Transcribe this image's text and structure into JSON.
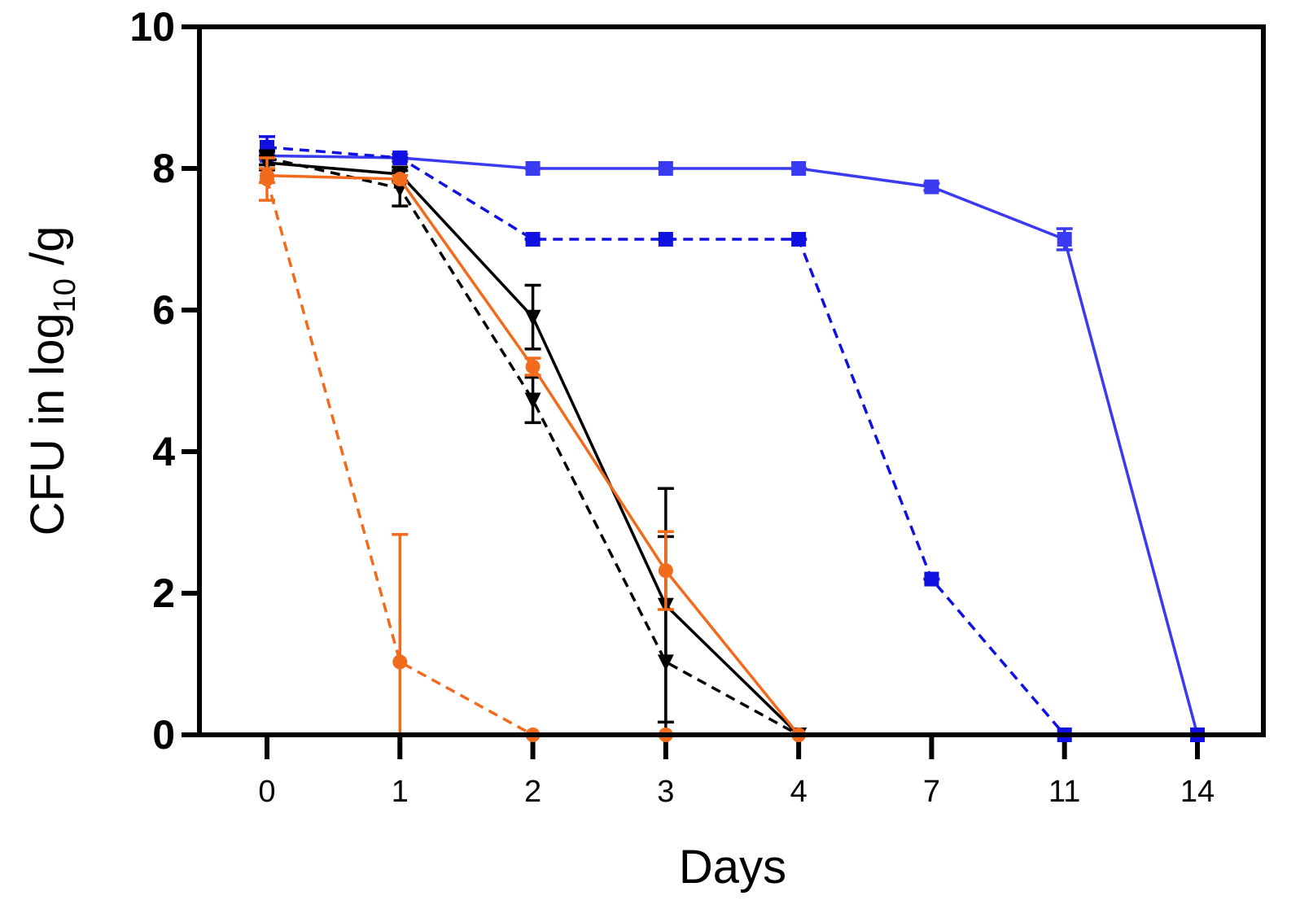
{
  "chart_data": {
    "type": "line",
    "xlabel": "Days",
    "ylabel": [
      "CFU in log",
      "10",
      " /g"
    ],
    "categories": [
      "0",
      "1",
      "2",
      "3",
      "4",
      "7",
      "11",
      "14"
    ],
    "ylim": [
      0,
      10
    ],
    "yticks": [
      0,
      2,
      4,
      6,
      8,
      10
    ],
    "series": [
      {
        "color": "#3a3af0",
        "marker": "square",
        "dashed": false,
        "values": [
          8.18,
          8.15,
          8.0,
          8.0,
          8.0,
          7.74,
          7.0,
          0
        ],
        "errors": [
          0.05,
          0.05,
          0,
          0,
          0,
          0.05,
          0.15,
          0
        ]
      },
      {
        "color": "#1010e0",
        "marker": "square",
        "dashed": true,
        "values": [
          8.3,
          8.15,
          7.0,
          7.0,
          7.0,
          2.2,
          0,
          0
        ],
        "errors": [
          0.15,
          0,
          0,
          0,
          0,
          0,
          0,
          0
        ]
      },
      {
        "color": "#000000",
        "marker": "triangle",
        "dashed": false,
        "values": [
          8.08,
          7.92,
          5.9,
          1.83,
          0,
          null,
          null,
          null
        ],
        "errors": [
          0.1,
          0.1,
          0.45,
          1.65,
          0,
          null,
          null,
          null
        ]
      },
      {
        "color": "#000000",
        "marker": "triangle",
        "dashed": true,
        "values": [
          8.15,
          7.72,
          4.73,
          1.03,
          0,
          null,
          null,
          null
        ],
        "errors": [
          0.1,
          0.25,
          0.32,
          1.77,
          0,
          null,
          null,
          null
        ]
      },
      {
        "color": "#f26a1b",
        "marker": "circle",
        "dashed": false,
        "values": [
          7.9,
          7.85,
          5.2,
          2.32,
          0,
          null,
          null,
          null
        ],
        "errors": [
          0.1,
          0.05,
          0.12,
          0.55,
          0,
          null,
          null,
          null
        ]
      },
      {
        "color": "#f26a1b",
        "marker": "circle",
        "dashed": true,
        "values": [
          7.85,
          1.03,
          0,
          0,
          null,
          null,
          null,
          null
        ],
        "errors": [
          0.3,
          1.8,
          0,
          0,
          null,
          null,
          null,
          null
        ]
      }
    ]
  }
}
